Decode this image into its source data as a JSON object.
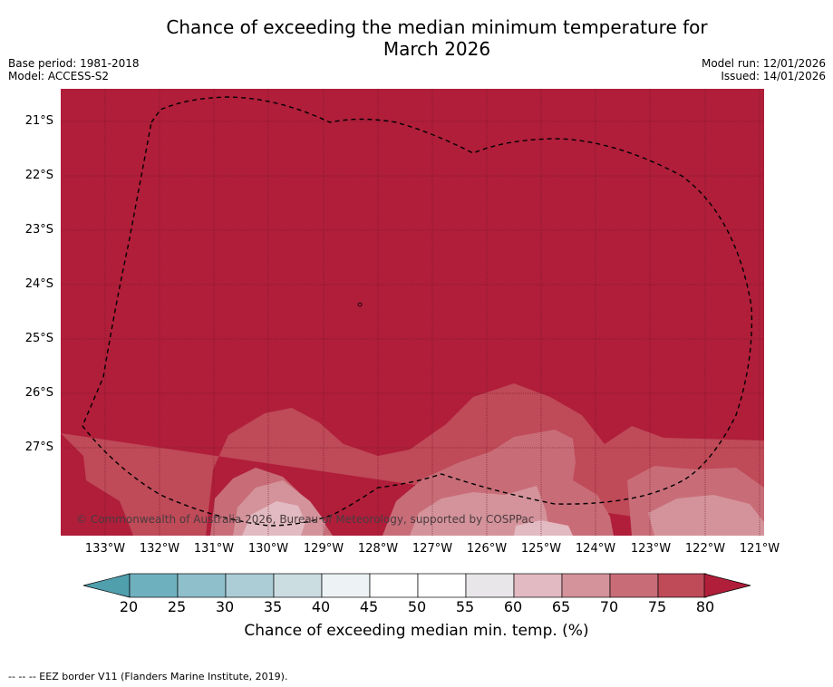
{
  "title": "Chance of exceeding the median minimum temperature for March 2026",
  "title_line1": "Chance of exceeding the median minimum temperature for",
  "title_line2": "March 2026",
  "meta_left": [
    "Base period: 1981-2018",
    "Model: ACCESS-S2"
  ],
  "meta_right": [
    "Model run: 12/01/2026",
    "Issued: 14/01/2026"
  ],
  "copyright": "© Commonwealth of Australia 2026, Bureau of Meteorology, supported by COSPPac",
  "lat_labels": [
    "21°S",
    "22°S",
    "23°S",
    "24°S",
    "25°S",
    "26°S",
    "27°S"
  ],
  "lon_labels": [
    "133°W",
    "132°W",
    "131°W",
    "130°W",
    "129°W",
    "128°W",
    "127°W",
    "126°W",
    "125°W",
    "124°W",
    "123°W",
    "122°W",
    "121°W"
  ],
  "colorbar": {
    "label": "Chance of exceeding median min. temp. (%)",
    "ticks": [
      "20",
      "25",
      "30",
      "35",
      "40",
      "45",
      "50",
      "55",
      "60",
      "65",
      "70",
      "75",
      "80"
    ],
    "colors": [
      "#4f9fad",
      "#6fb0bf",
      "#8fbfcb",
      "#adcdd6",
      "#ccdde2",
      "#edf2f4",
      "#ffffff",
      "#ffffff",
      "#e8e6e8",
      "#e2bac1",
      "#d4939b",
      "#c86d78",
      "#bf4a58",
      "#b01e3a"
    ]
  },
  "footer": "--  --  -- EEZ border V11 (Flanders Marine Institute, 2019).",
  "colors": {
    "over80": "#b01e3a",
    "c75": "#bf4a58",
    "c70": "#c86d78",
    "c65": "#d4939b",
    "c60": "#e2bac1"
  }
}
